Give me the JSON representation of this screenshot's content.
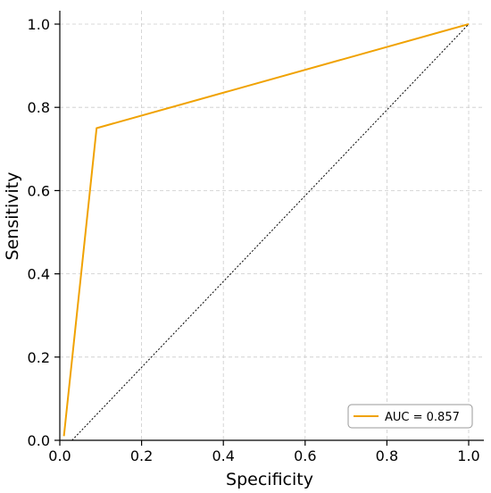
{
  "chart_data": {
    "type": "line",
    "xlabel": "Specificity",
    "ylabel": "Sensitivity",
    "xlim": [
      0.0,
      1.0
    ],
    "ylim": [
      0.0,
      1.0
    ],
    "xticks": [
      "0.0",
      "0.2",
      "0.4",
      "0.6",
      "0.8",
      "1.0"
    ],
    "yticks": [
      "0.0",
      "0.2",
      "0.4",
      "0.6",
      "0.8",
      "1.0"
    ],
    "grid": true,
    "legend_position": "bottom-right",
    "series": [
      {
        "name": "AUC = 0.857",
        "color": "#f0a202",
        "style": "solid",
        "x": [
          0.01,
          0.09,
          1.0
        ],
        "y": [
          0.01,
          0.75,
          1.0
        ]
      },
      {
        "color": "#000000",
        "style": "dotted",
        "x": [
          0.03,
          1.0
        ],
        "y": [
          0.0,
          1.0
        ]
      }
    ]
  }
}
